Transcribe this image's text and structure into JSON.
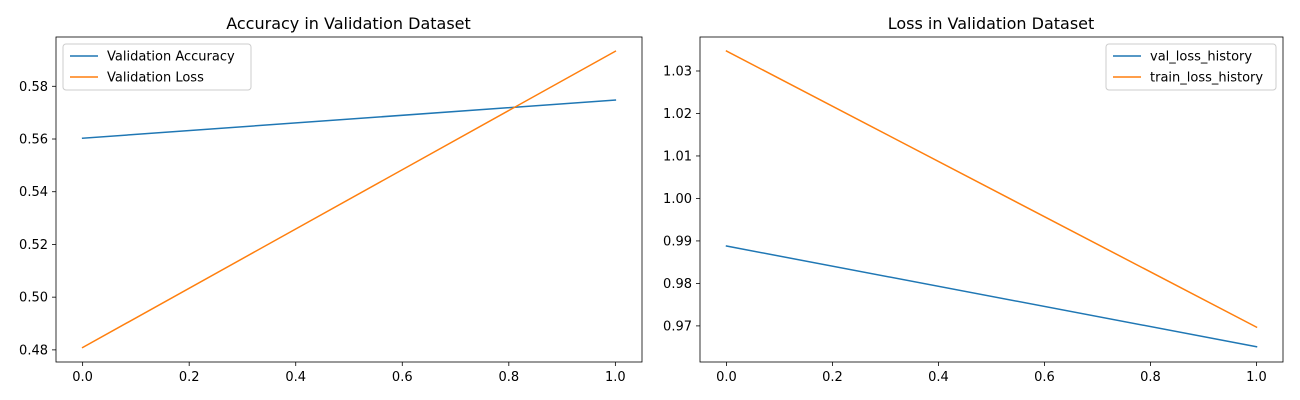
{
  "chart_data": [
    {
      "type": "line",
      "title": "Accuracy in Validation Dataset",
      "xlabel": "",
      "ylabel": "",
      "xlim": [
        -0.05,
        1.05
      ],
      "ylim": [
        0.4754,
        0.5987
      ],
      "xticks": [
        0.0,
        0.2,
        0.4,
        0.6,
        0.8,
        1.0
      ],
      "xtick_labels": [
        "0.0",
        "0.2",
        "0.4",
        "0.6",
        "0.8",
        "1.0"
      ],
      "yticks": [
        0.48,
        0.5,
        0.52,
        0.54,
        0.56,
        0.58
      ],
      "ytick_labels": [
        "0.48",
        "0.50",
        "0.52",
        "0.54",
        "0.56",
        "0.58"
      ],
      "grid": false,
      "legend_position": "upper-left",
      "x": [
        0,
        1
      ],
      "series": [
        {
          "name": "Validation Accuracy",
          "color": "#1f77b4",
          "values": [
            0.5603,
            0.5748
          ]
        },
        {
          "name": "Validation Loss",
          "color": "#ff7f0e",
          "values": [
            0.4809,
            0.5933
          ]
        }
      ]
    },
    {
      "type": "line",
      "title": "Loss in Validation Dataset",
      "xlabel": "",
      "ylabel": "",
      "xlim": [
        -0.05,
        1.05
      ],
      "ylim": [
        0.9615,
        1.038
      ],
      "xticks": [
        0.0,
        0.2,
        0.4,
        0.6,
        0.8,
        1.0
      ],
      "xtick_labels": [
        "0.0",
        "0.2",
        "0.4",
        "0.6",
        "0.8",
        "1.0"
      ],
      "yticks": [
        0.97,
        0.98,
        0.99,
        1.0,
        1.01,
        1.02,
        1.03
      ],
      "ytick_labels": [
        "0.97",
        "0.98",
        "0.99",
        "1.00",
        "1.01",
        "1.02",
        "1.03"
      ],
      "grid": false,
      "legend_position": "upper-right",
      "x": [
        0,
        1
      ],
      "series": [
        {
          "name": "val_loss_history",
          "color": "#1f77b4",
          "values": [
            0.9888,
            0.9651
          ]
        },
        {
          "name": "train_loss_history",
          "color": "#ff7f0e",
          "values": [
            1.0347,
            0.9697
          ]
        }
      ]
    }
  ]
}
